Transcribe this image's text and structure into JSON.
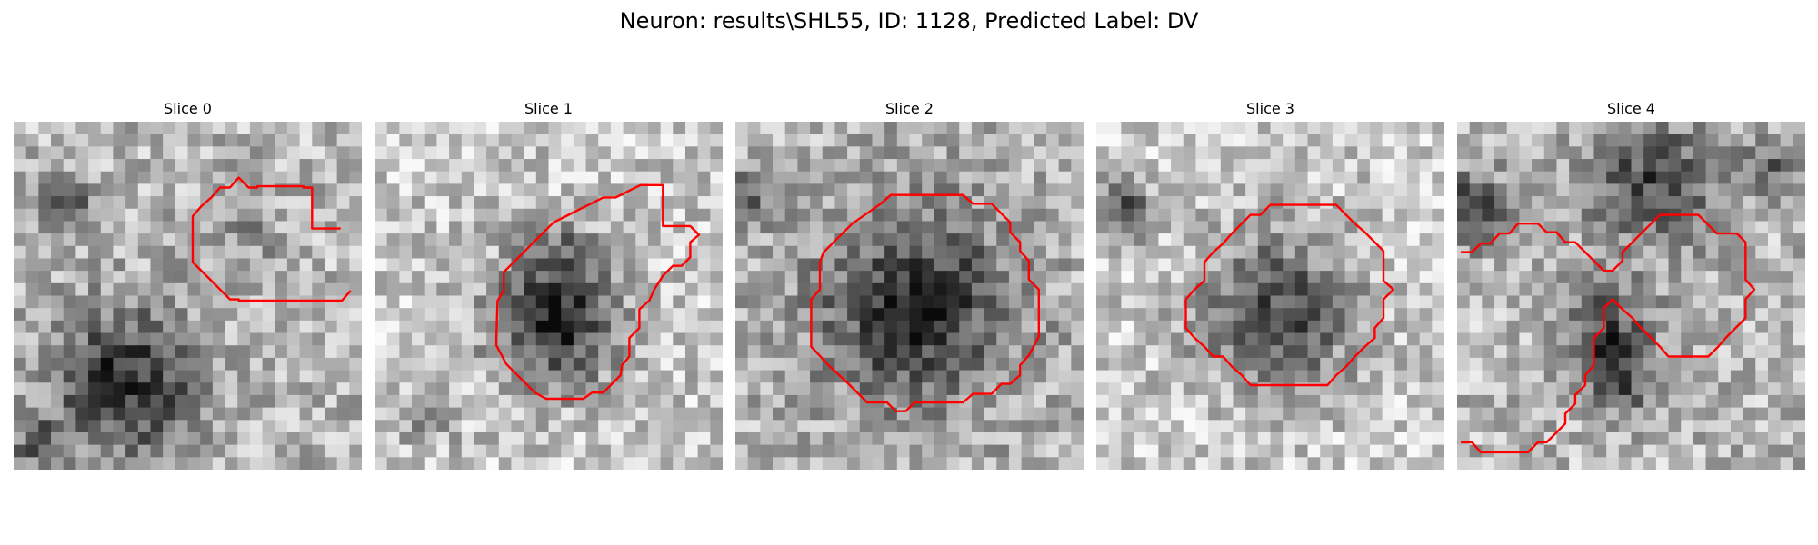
{
  "figure": {
    "title": "Neuron: results\\SHL55, ID: 1128, Predicted Label: DV",
    "colormap": "grayscale",
    "contour_color": "#ff0000",
    "grid_size": 28
  },
  "panels": [
    {
      "title": "Slice 0"
    },
    {
      "title": "Slice 1"
    },
    {
      "title": "Slice 2"
    },
    {
      "title": "Slice 3"
    },
    {
      "title": "Slice 4"
    }
  ]
}
